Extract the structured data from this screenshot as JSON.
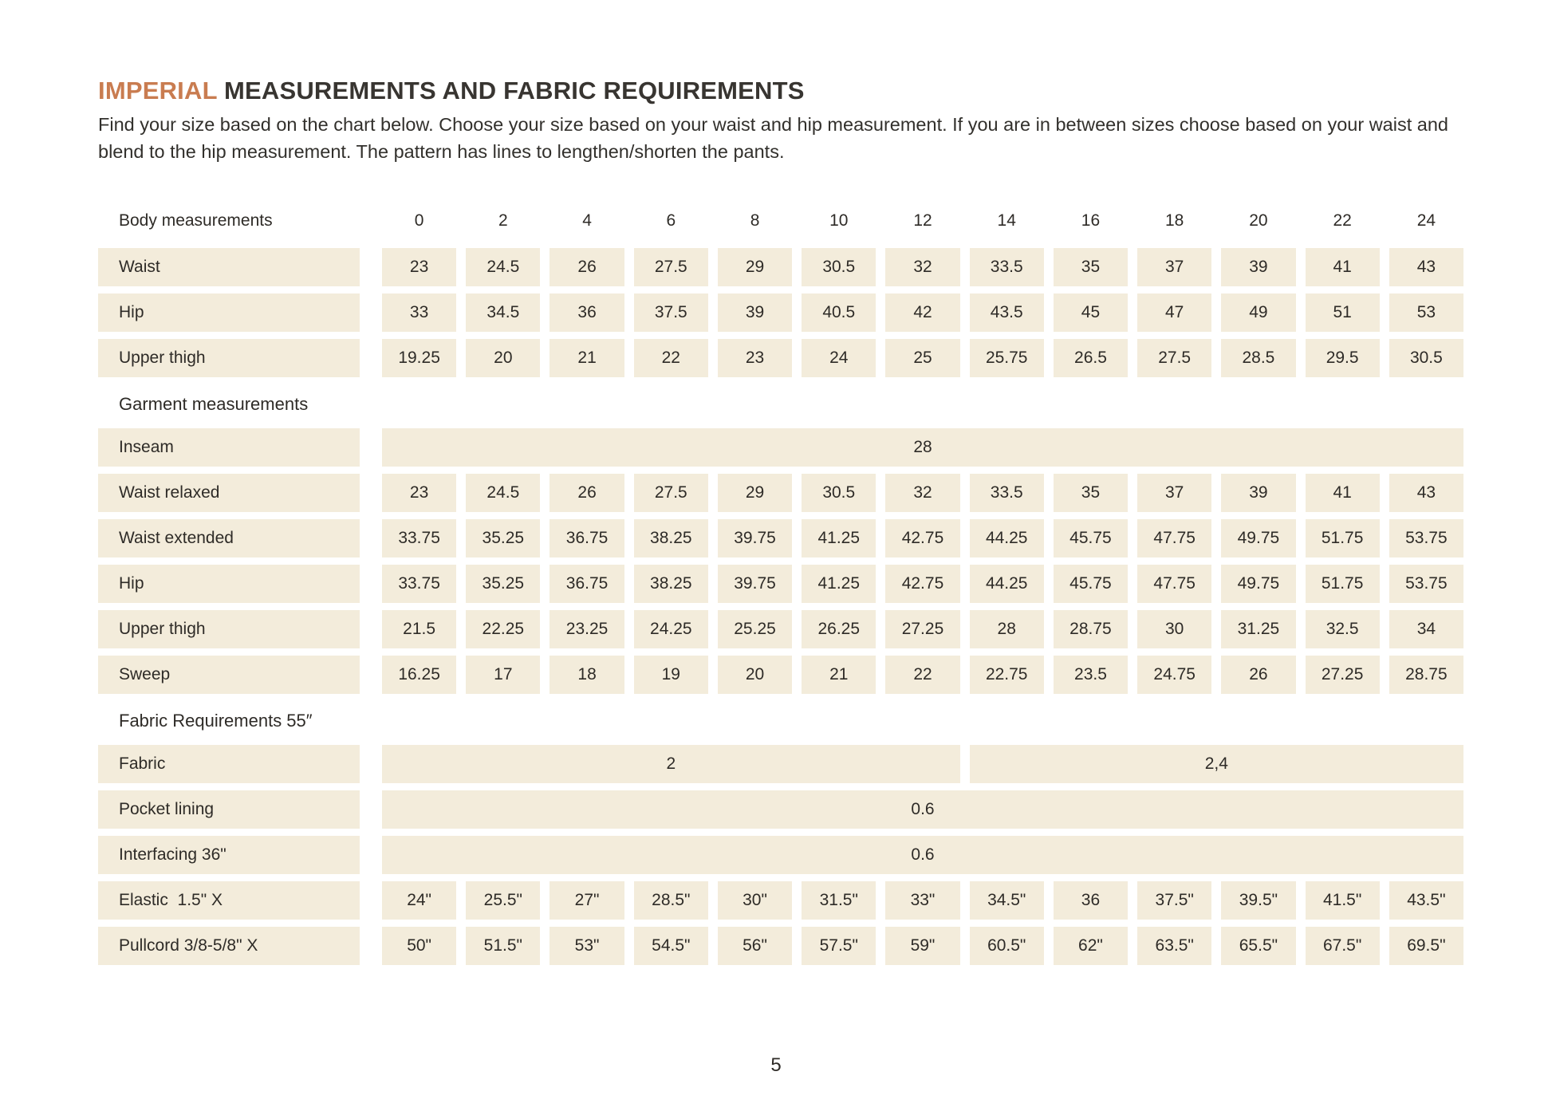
{
  "header": {
    "title_highlight": "IMPERIAL",
    "title_rest": " MEASUREMENTS AND FABRIC REQUIREMENTS",
    "intro": "Find your size based on the chart below. Choose your size based on your waist and hip measurement. If you are in between sizes choose based on your waist and blend to the hip measurement. The pattern has lines to lengthen/shorten the pants."
  },
  "colors": {
    "accent": "#c97c50",
    "cell_background": "#f3ecdb",
    "text": "#2e2b27"
  },
  "table": {
    "sizes": [
      "0",
      "2",
      "4",
      "6",
      "8",
      "10",
      "12",
      "14",
      "16",
      "18",
      "20",
      "22",
      "24"
    ],
    "sections": [
      {
        "header": "Body measurements",
        "sizes_in_header": true,
        "rows": [
          {
            "label": "Waist",
            "values": [
              "23",
              "24.5",
              "26",
              "27.5",
              "29",
              "30.5",
              "32",
              "33.5",
              "35",
              "37",
              "39",
              "41",
              "43"
            ]
          },
          {
            "label": "Hip",
            "values": [
              "33",
              "34.5",
              "36",
              "37.5",
              "39",
              "40.5",
              "42",
              "43.5",
              "45",
              "47",
              "49",
              "51",
              "53"
            ]
          },
          {
            "label": "Upper thigh",
            "values": [
              "19.25",
              "20",
              "21",
              "22",
              "23",
              "24",
              "25",
              "25.75",
              "26.5",
              "27.5",
              "28.5",
              "29.5",
              "30.5"
            ]
          }
        ]
      },
      {
        "header": "Garment measurements",
        "sizes_in_header": false,
        "rows": [
          {
            "label": "Inseam",
            "merged": [
              {
                "span": 13,
                "value": "28"
              }
            ]
          },
          {
            "label": "Waist relaxed",
            "values": [
              "23",
              "24.5",
              "26",
              "27.5",
              "29",
              "30.5",
              "32",
              "33.5",
              "35",
              "37",
              "39",
              "41",
              "43"
            ]
          },
          {
            "label": "Waist extended",
            "values": [
              "33.75",
              "35.25",
              "36.75",
              "38.25",
              "39.75",
              "41.25",
              "42.75",
              "44.25",
              "45.75",
              "47.75",
              "49.75",
              "51.75",
              "53.75"
            ]
          },
          {
            "label": "Hip",
            "values": [
              "33.75",
              "35.25",
              "36.75",
              "38.25",
              "39.75",
              "41.25",
              "42.75",
              "44.25",
              "45.75",
              "47.75",
              "49.75",
              "51.75",
              "53.75"
            ]
          },
          {
            "label": "Upper thigh",
            "values": [
              "21.5",
              "22.25",
              "23.25",
              "24.25",
              "25.25",
              "26.25",
              "27.25",
              "28",
              "28.75",
              "30",
              "31.25",
              "32.5",
              "34"
            ]
          },
          {
            "label": "Sweep",
            "values": [
              "16.25",
              "17",
              "18",
              "19",
              "20",
              "21",
              "22",
              "22.75",
              "23.5",
              "24.75",
              "26",
              "27.25",
              "28.75"
            ]
          }
        ]
      },
      {
        "header": "Fabric Requirements 55″",
        "sizes_in_header": false,
        "rows": [
          {
            "label": "Fabric",
            "merged": [
              {
                "span": 7,
                "value": "2"
              },
              {
                "span": 6,
                "value": "2,4"
              }
            ]
          },
          {
            "label": "Pocket lining",
            "merged": [
              {
                "span": 13,
                "value": "0.6"
              }
            ]
          },
          {
            "label": "Interfacing 36\"",
            "merged": [
              {
                "span": 13,
                "value": "0.6"
              }
            ]
          },
          {
            "label": "Elastic  1.5\" X",
            "values": [
              "24\"",
              "25.5\"",
              "27\"",
              "28.5\"",
              "30\"",
              "31.5\"",
              "33\"",
              "34.5\"",
              "36",
              "37.5\"",
              "39.5\"",
              "41.5\"",
              "43.5\""
            ]
          },
          {
            "label": "Pullcord 3/8-5/8\" X",
            "values": [
              "50\"",
              "51.5\"",
              "53\"",
              "54.5\"",
              "56\"",
              "57.5\"",
              "59\"",
              "60.5\"",
              "62\"",
              "63.5\"",
              "65.5\"",
              "67.5\"",
              "69.5\""
            ]
          }
        ]
      }
    ]
  },
  "footer": {
    "page_number": "5"
  }
}
